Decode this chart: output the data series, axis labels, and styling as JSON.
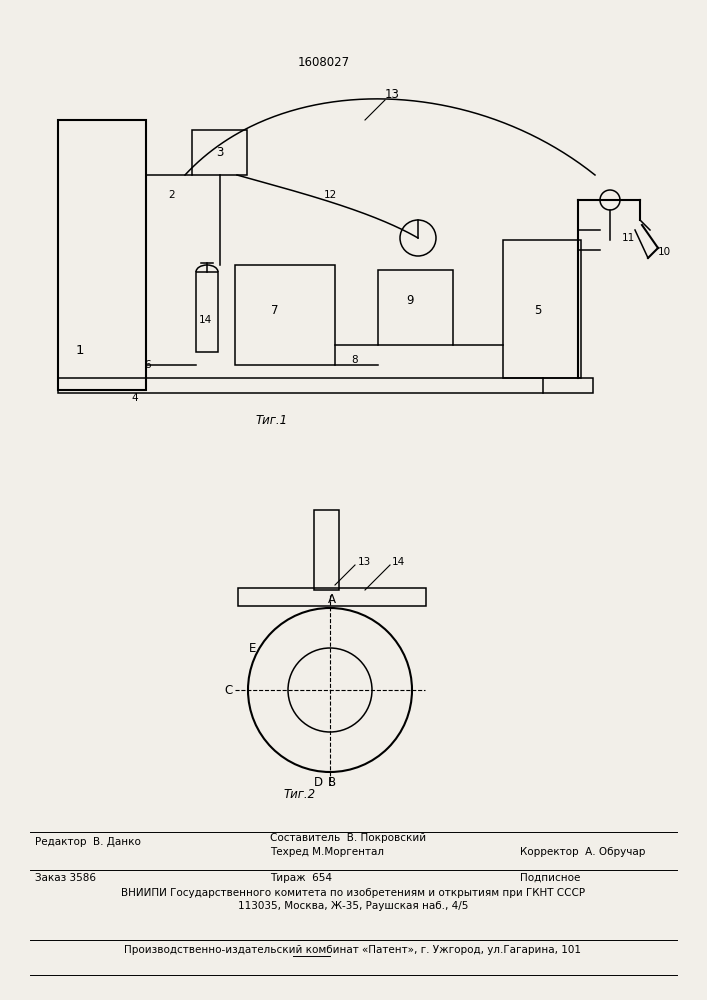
{
  "bg_color": "#f2efe9",
  "patent_number": "1608027",
  "fig1_caption": "Τиг.1",
  "fig2_caption": "Τиг.2",
  "footer_line1_left": "Редактор  В. Данко",
  "footer_line1_mid1": "Составитель  В. Покровский",
  "footer_line1_mid2": "Техред М.Моргентал",
  "footer_line1_right": "Корректор  А. Обручар",
  "footer_line2_left": "Заказ 3586",
  "footer_line2_mid": "Тираж  654",
  "footer_line2_right": "Подписное",
  "footer_line3": "ВНИИПИ Государственного комитета по изобретениям и открытиям при ГКНТ СССР",
  "footer_line4": "113035, Москва, Ж-35, Раушская наб., 4/5",
  "footer_line5": "Производственно-издательский комбинат «Патент», г. Ужгород, ул.Гагарина, 101"
}
